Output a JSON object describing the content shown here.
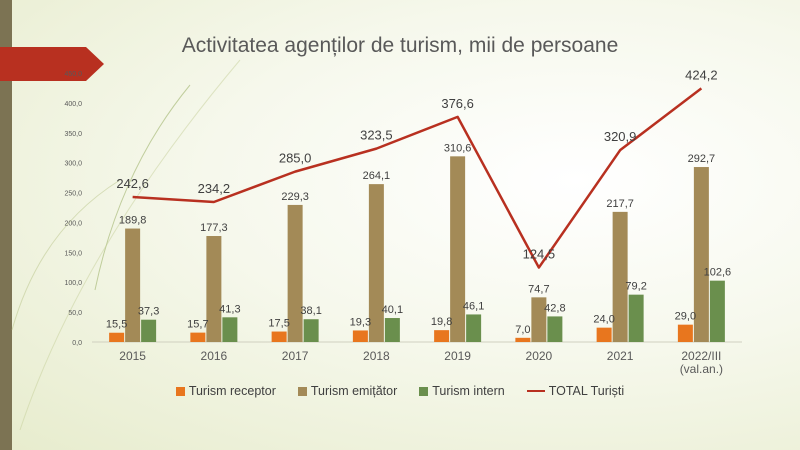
{
  "slide": {
    "title": "Activitatea agenților de turism, mii de persoane"
  },
  "colors": {
    "receptor": "#e8761e",
    "emitator": "#a38a57",
    "intern": "#6a8f4d",
    "total": "#b83020",
    "arrow": "#b83020",
    "strip": "#7c7353"
  },
  "chart_data": {
    "type": "bar",
    "title": "Activitatea agenților de turism, mii de persoane",
    "categories": [
      "2015",
      "2016",
      "2017",
      "2018",
      "2019",
      "2020",
      "2021",
      "2022/III (val.an.)"
    ],
    "category_lines": [
      [
        "2015"
      ],
      [
        "2016"
      ],
      [
        "2017"
      ],
      [
        "2018"
      ],
      [
        "2019"
      ],
      [
        "2020"
      ],
      [
        "2021"
      ],
      [
        "2022/III",
        "(val.an.)"
      ]
    ],
    "ylim": [
      0,
      450
    ],
    "yticks": [
      "0,0",
      "50,0",
      "100,0",
      "150,0",
      "200,0",
      "250,0",
      "300,0",
      "350,0",
      "400,0",
      "450,0"
    ],
    "ytick_values": [
      0,
      50,
      100,
      150,
      200,
      250,
      300,
      350,
      400,
      450
    ],
    "gridlines": false,
    "legend_position": "bottom",
    "series": [
      {
        "name": "Turism receptor",
        "kind": "bar",
        "color_key": "receptor",
        "values": [
          15.5,
          15.7,
          17.5,
          19.3,
          19.8,
          7.0,
          24.0,
          29.0
        ],
        "labels": [
          "15,5",
          "15,7",
          "17,5",
          "19,3",
          "19,8",
          "7,0",
          "24,0",
          "29,0"
        ]
      },
      {
        "name": "Turism emițător",
        "kind": "bar",
        "color_key": "emitator",
        "values": [
          189.8,
          177.3,
          229.3,
          264.1,
          310.6,
          74.7,
          217.7,
          292.7
        ],
        "labels": [
          "189,8",
          "177,3",
          "229,3",
          "264,1",
          "310,6",
          "74,7",
          "217,7",
          "292,7"
        ]
      },
      {
        "name": "Turism intern",
        "kind": "bar",
        "color_key": "intern",
        "values": [
          37.3,
          41.3,
          38.1,
          40.1,
          46.1,
          42.8,
          79.2,
          102.6
        ],
        "labels": [
          "37,3",
          "41,3",
          "38,1",
          "40,1",
          "46,1",
          "42,8",
          "79,2",
          "102,6"
        ]
      },
      {
        "name": "TOTAL Turiști",
        "kind": "line",
        "color_key": "total",
        "values": [
          242.6,
          234.2,
          285.0,
          323.5,
          376.6,
          124.5,
          320.9,
          424.2
        ],
        "labels": [
          "242,6",
          "234,2",
          "285,0",
          "323,5",
          "376,6",
          "124,5",
          "320,9",
          "424,2"
        ]
      }
    ]
  }
}
